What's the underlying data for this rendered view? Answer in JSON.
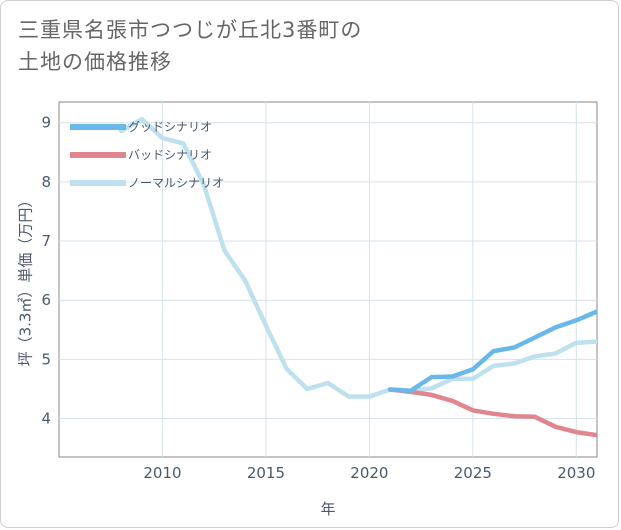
{
  "title": "三重県名張市つつじが丘北3番町の\n土地の価格推移",
  "chart_data": {
    "type": "line",
    "xlabel": "年",
    "ylabel": "坪（3.3㎡）単価（万円）",
    "xlim": [
      2005,
      2031
    ],
    "ylim": [
      3.35,
      9.35
    ],
    "x_ticks": [
      2010,
      2015,
      2020,
      2025,
      2030
    ],
    "y_ticks": [
      4,
      5,
      6,
      7,
      8,
      9
    ],
    "grid": true,
    "legend_position": "top-left",
    "series": [
      {
        "name": "グッドシナリオ",
        "color": "#6ab8ea",
        "x": [
          2021,
          2022,
          2023,
          2024,
          2025,
          2026,
          2027,
          2028,
          2029,
          2030,
          2031
        ],
        "values": [
          4.49,
          4.47,
          4.7,
          4.71,
          4.83,
          5.14,
          5.2,
          5.37,
          5.54,
          5.66,
          5.81
        ]
      },
      {
        "name": "バッドシナリオ",
        "color": "#e0868f",
        "x": [
          2021,
          2022,
          2023,
          2024,
          2025,
          2026,
          2027,
          2028,
          2029,
          2030,
          2031
        ],
        "values": [
          4.49,
          4.45,
          4.4,
          4.3,
          4.14,
          4.08,
          4.04,
          4.03,
          3.86,
          3.77,
          3.72
        ]
      },
      {
        "name": "ノーマルシナリオ",
        "color": "#bfe0ef",
        "x": [
          2008,
          2009,
          2010,
          2011,
          2012,
          2013,
          2014,
          2015,
          2016,
          2017,
          2018,
          2019,
          2020,
          2021,
          2022,
          2023,
          2024,
          2025,
          2026,
          2027,
          2028,
          2029,
          2030,
          2031
        ],
        "values": [
          8.86,
          9.06,
          8.74,
          8.65,
          7.95,
          6.84,
          6.33,
          5.57,
          4.84,
          4.5,
          4.6,
          4.37,
          4.37,
          4.49,
          4.47,
          4.51,
          4.67,
          4.67,
          4.89,
          4.93,
          5.05,
          5.1,
          5.28,
          5.3
        ]
      }
    ]
  }
}
